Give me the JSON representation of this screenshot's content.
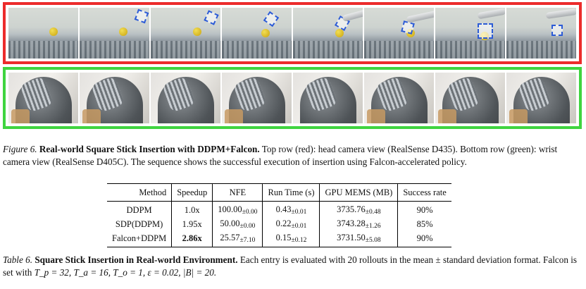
{
  "figure": {
    "label": "Figure 6.",
    "title": "Real-world Square Stick Insertion with DDPM+Falcon.",
    "text": " Top row (red): head camera view (RealSense D435). Bottom row (green): wrist camera view (RealSense D405C). The sequence shows the successful execution of insertion using Falcon-accelerated policy.",
    "top_row_frames": 8,
    "bottom_row_frames": 8,
    "colors": {
      "top_border": "#ec2b2b",
      "bottom_border": "#3fd43f"
    }
  },
  "table": {
    "headers": [
      "Method",
      "Speedup",
      "NFE",
      "Run Time (s)",
      "GPU MEMS (MB)",
      "Success rate"
    ],
    "rows": [
      {
        "method": "DDPM",
        "speedup": "1.0x",
        "nfe": "100.00",
        "nfe_std": "±0.00",
        "runtime": "0.43",
        "runtime_std": "±0.01",
        "mem": "3735.76",
        "mem_std": "±0.48",
        "success": "90%"
      },
      {
        "method": "SDP(DDPM)",
        "speedup": "1.95x",
        "nfe": "50.00",
        "nfe_std": "±0.00",
        "runtime": "0.22",
        "runtime_std": "±0.01",
        "mem": "3743.28",
        "mem_std": "±1.26",
        "success": "85%"
      },
      {
        "method": "Falcon+DDPM",
        "speedup": "2.86x",
        "nfe": "25.57",
        "nfe_std": "±7.10",
        "runtime": "0.15",
        "runtime_std": "±0.12",
        "mem": "3731.50",
        "mem_std": "±5.08",
        "success": "90%"
      }
    ]
  },
  "table_caption": {
    "label": "Table 6.",
    "title": "Square Stick Insertion in Real-world Environment.",
    "text": " Each entry is evaluated with 20 rollouts in the mean ± standard deviation format. Falcon is set with T",
    "formula": "T_p = 32, T_a = 16, T_o = 1, ε = 0.02, |B| = 20."
  }
}
